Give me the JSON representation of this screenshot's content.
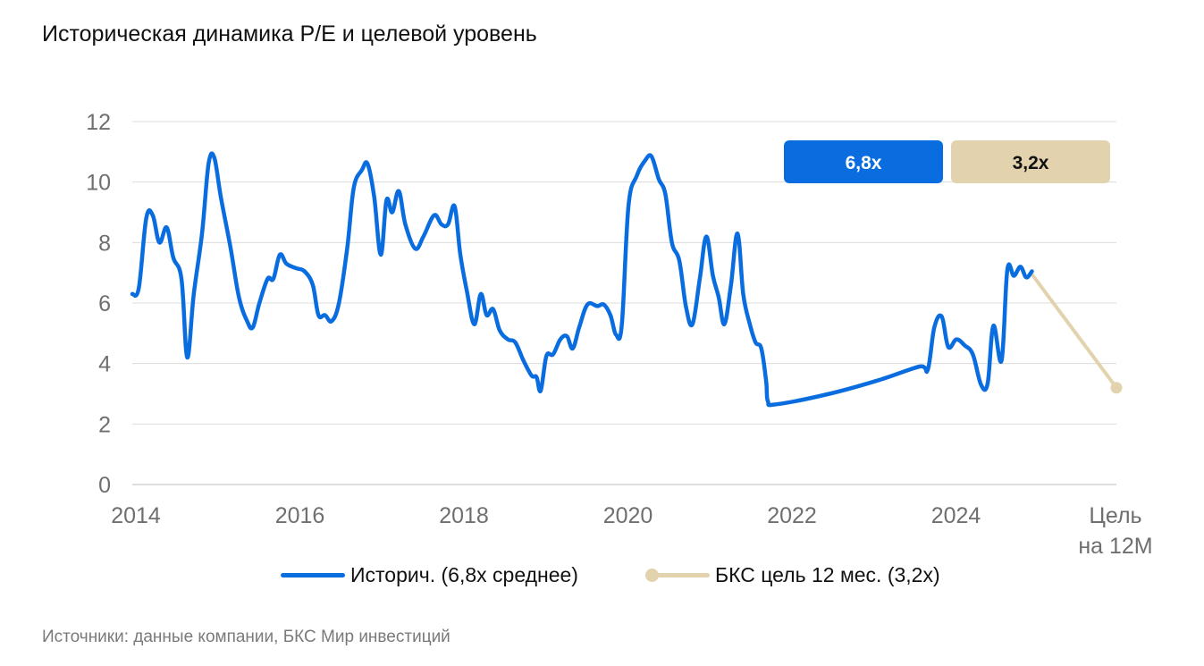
{
  "title": "Историческая динамика P/E и целевой уровень",
  "source": "Источники: данные компании, БКС Мир инвестиций",
  "colors": {
    "historical": "#0a6ddf",
    "target": "#e2d3ae",
    "grid": "#dcdcdc",
    "tick": "#6f6f6f"
  },
  "badges": [
    {
      "label": "6,8x",
      "color": "#0a6ddf",
      "text_color": "#ffffff"
    },
    {
      "label": "3,2x",
      "color": "#e2d3ae",
      "text_color": "#111111"
    }
  ],
  "legend": [
    {
      "label": "Историч. (6,8x среднее)",
      "color": "#0a6ddf",
      "style": "line"
    },
    {
      "label": "БКС цель 12 мес. (3,2x)",
      "color": "#e2d3ae",
      "style": "line-dot"
    }
  ],
  "chart_data": {
    "type": "line",
    "y_ticks": [
      "0",
      "2",
      "4",
      "6",
      "8",
      "10",
      "12"
    ],
    "x_ticks": [
      "2014",
      "2016",
      "2018",
      "2020",
      "2022",
      "2024"
    ],
    "x_tick_values": [
      2014,
      2016,
      2018,
      2020,
      2022,
      2024
    ],
    "x_extra_label": [
      "Цель",
      "на 12М"
    ],
    "ylim": [
      0,
      12
    ],
    "xlim": [
      2014,
      2026
    ],
    "grid": true,
    "legend_position": "bottom",
    "series": [
      {
        "name": "Историч. (6,8x среднее)",
        "points": [
          [
            2014.0,
            6.3
          ],
          [
            2014.08,
            6.5
          ],
          [
            2014.17,
            8.8
          ],
          [
            2014.25,
            8.9
          ],
          [
            2014.33,
            8.0
          ],
          [
            2014.42,
            8.5
          ],
          [
            2014.5,
            7.5
          ],
          [
            2014.6,
            6.8
          ],
          [
            2014.67,
            4.2
          ],
          [
            2014.75,
            6.3
          ],
          [
            2014.85,
            8.3
          ],
          [
            2014.93,
            10.6
          ],
          [
            2015.0,
            10.8
          ],
          [
            2015.08,
            9.5
          ],
          [
            2015.2,
            7.8
          ],
          [
            2015.3,
            6.2
          ],
          [
            2015.4,
            5.4
          ],
          [
            2015.47,
            5.2
          ],
          [
            2015.55,
            6.0
          ],
          [
            2015.65,
            6.8
          ],
          [
            2015.72,
            6.8
          ],
          [
            2015.8,
            7.6
          ],
          [
            2015.88,
            7.3
          ],
          [
            2016.0,
            7.15
          ],
          [
            2016.1,
            7.05
          ],
          [
            2016.2,
            6.6
          ],
          [
            2016.27,
            5.6
          ],
          [
            2016.35,
            5.6
          ],
          [
            2016.43,
            5.4
          ],
          [
            2016.52,
            6.0
          ],
          [
            2016.62,
            7.8
          ],
          [
            2016.7,
            9.8
          ],
          [
            2016.8,
            10.4
          ],
          [
            2016.87,
            10.6
          ],
          [
            2016.95,
            9.5
          ],
          [
            2017.03,
            7.6
          ],
          [
            2017.1,
            9.4
          ],
          [
            2017.17,
            9.0
          ],
          [
            2017.25,
            9.7
          ],
          [
            2017.33,
            8.6
          ],
          [
            2017.45,
            7.8
          ],
          [
            2017.55,
            8.2
          ],
          [
            2017.68,
            8.9
          ],
          [
            2017.77,
            8.6
          ],
          [
            2017.85,
            8.6
          ],
          [
            2017.93,
            9.2
          ],
          [
            2018.0,
            7.6
          ],
          [
            2018.08,
            6.4
          ],
          [
            2018.17,
            5.3
          ],
          [
            2018.25,
            6.3
          ],
          [
            2018.32,
            5.6
          ],
          [
            2018.4,
            5.8
          ],
          [
            2018.48,
            5.1
          ],
          [
            2018.58,
            4.8
          ],
          [
            2018.67,
            4.7
          ],
          [
            2018.77,
            4.1
          ],
          [
            2018.87,
            3.6
          ],
          [
            2018.93,
            3.55
          ],
          [
            2018.98,
            3.1
          ],
          [
            2019.05,
            4.25
          ],
          [
            2019.13,
            4.3
          ],
          [
            2019.22,
            4.8
          ],
          [
            2019.3,
            4.9
          ],
          [
            2019.37,
            4.5
          ],
          [
            2019.45,
            5.2
          ],
          [
            2019.55,
            5.95
          ],
          [
            2019.67,
            5.9
          ],
          [
            2019.75,
            5.95
          ],
          [
            2019.83,
            5.6
          ],
          [
            2019.9,
            4.95
          ],
          [
            2019.97,
            5.3
          ],
          [
            2020.05,
            9.2
          ],
          [
            2020.15,
            10.2
          ],
          [
            2020.25,
            10.7
          ],
          [
            2020.33,
            10.85
          ],
          [
            2020.42,
            10.1
          ],
          [
            2020.5,
            9.6
          ],
          [
            2020.58,
            8.0
          ],
          [
            2020.67,
            7.4
          ],
          [
            2020.75,
            5.9
          ],
          [
            2020.83,
            5.3
          ],
          [
            2020.92,
            6.8
          ],
          [
            2021.0,
            8.2
          ],
          [
            2021.08,
            6.9
          ],
          [
            2021.15,
            6.2
          ],
          [
            2021.22,
            5.3
          ],
          [
            2021.3,
            6.6
          ],
          [
            2021.38,
            8.3
          ],
          [
            2021.45,
            6.3
          ],
          [
            2021.53,
            5.3
          ],
          [
            2021.6,
            4.7
          ],
          [
            2021.67,
            4.5
          ],
          [
            2021.73,
            3.4
          ],
          [
            2021.75,
            2.75
          ],
          [
            2021.85,
            2.65
          ],
          [
            2022.5,
            3.0
          ],
          [
            2023.1,
            3.45
          ],
          [
            2023.6,
            3.9
          ],
          [
            2023.7,
            3.8
          ],
          [
            2023.78,
            5.2
          ],
          [
            2023.87,
            5.55
          ],
          [
            2023.95,
            4.55
          ],
          [
            2024.05,
            4.8
          ],
          [
            2024.15,
            4.6
          ],
          [
            2024.25,
            4.3
          ],
          [
            2024.35,
            3.3
          ],
          [
            2024.43,
            3.35
          ],
          [
            2024.5,
            5.25
          ],
          [
            2024.6,
            4.1
          ],
          [
            2024.67,
            7.1
          ],
          [
            2024.75,
            6.9
          ],
          [
            2024.83,
            7.2
          ],
          [
            2024.9,
            6.85
          ],
          [
            2024.97,
            7.05
          ]
        ]
      },
      {
        "name": "БКС цель 12 мес. (3,2x)",
        "points": [
          [
            2024.97,
            6.95
          ],
          [
            2026.0,
            3.2
          ]
        ]
      }
    ]
  }
}
